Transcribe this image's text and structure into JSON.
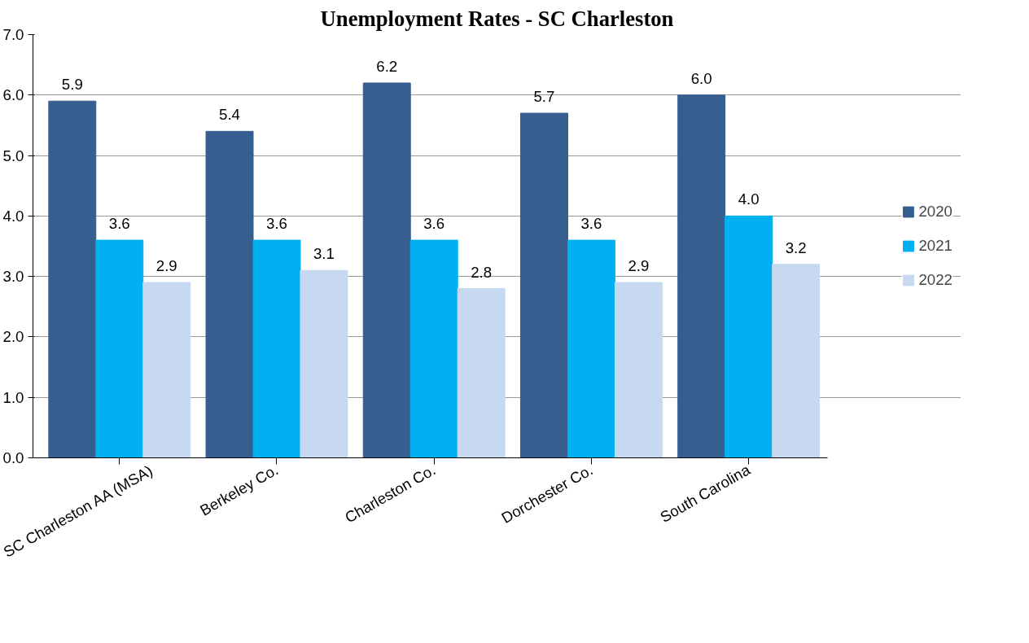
{
  "chart_data": {
    "type": "bar",
    "title": "Unemployment Rates - SC Charleston",
    "categories": [
      "SC Charleston AA (MSA)",
      "Berkeley Co.",
      "Charleston Co.",
      "Dorchester Co.",
      "South Carolina"
    ],
    "series": [
      {
        "name": "2020",
        "color": "#365f8f",
        "values": [
          5.9,
          5.4,
          6.2,
          5.7,
          6.0
        ],
        "value_labels": [
          "5.9",
          "5.4",
          "6.2",
          "5.7",
          "6.0"
        ]
      },
      {
        "name": "2021",
        "color": "#00b0f0",
        "values": [
          3.6,
          3.6,
          3.6,
          3.6,
          4.0
        ],
        "value_labels": [
          "3.6",
          "3.6",
          "3.6",
          "3.6",
          "4.0"
        ]
      },
      {
        "name": "2022",
        "color": "#c6d9f1",
        "values": [
          2.9,
          3.1,
          2.8,
          2.9,
          3.2
        ],
        "value_labels": [
          "2.9",
          "3.1",
          "2.8",
          "2.9",
          "3.2"
        ]
      }
    ],
    "ylim": [
      0,
      7
    ],
    "yticks": [
      {
        "value": 0,
        "label": "0.0"
      },
      {
        "value": 1,
        "label": "1.0"
      },
      {
        "value": 2,
        "label": "2.0"
      },
      {
        "value": 3,
        "label": "3.0"
      },
      {
        "value": 4,
        "label": "4.0"
      },
      {
        "value": 5,
        "label": "5.0"
      },
      {
        "value": 6,
        "label": "6.0"
      },
      {
        "value": 7,
        "label": "7.0"
      }
    ],
    "grid": "y",
    "legend": "right"
  }
}
